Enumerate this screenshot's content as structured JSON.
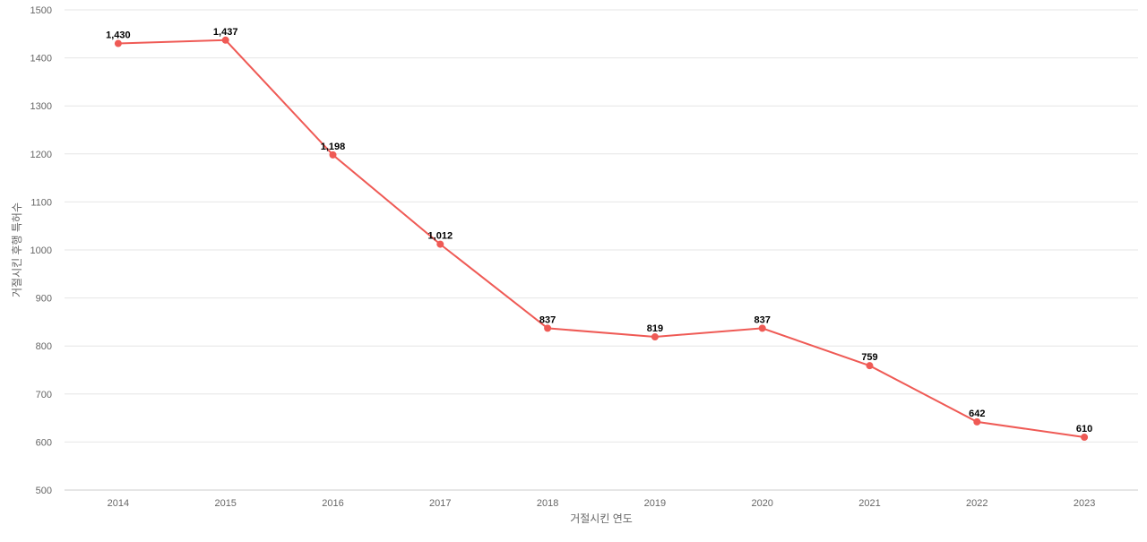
{
  "chart_data": {
    "type": "line",
    "title": "",
    "xlabel": "거절시킨 연도",
    "ylabel": "거절시킨 후행 특허수",
    "categories": [
      "2014",
      "2015",
      "2016",
      "2017",
      "2018",
      "2019",
      "2020",
      "2021",
      "2022",
      "2023"
    ],
    "series": [
      {
        "values": [
          1430,
          1437,
          1198,
          1012,
          837,
          819,
          837,
          759,
          642,
          610
        ],
        "data_labels": [
          "1,430",
          "1,437",
          "1,198",
          "1,012",
          "837",
          "819",
          "837",
          "759",
          "642",
          "610"
        ],
        "color": "#ef5a55"
      }
    ],
    "ylim": [
      500,
      1500
    ],
    "yticks": [
      500,
      600,
      700,
      800,
      900,
      1000,
      1100,
      1200,
      1300,
      1400,
      1500
    ],
    "grid": true,
    "legend": "none"
  }
}
